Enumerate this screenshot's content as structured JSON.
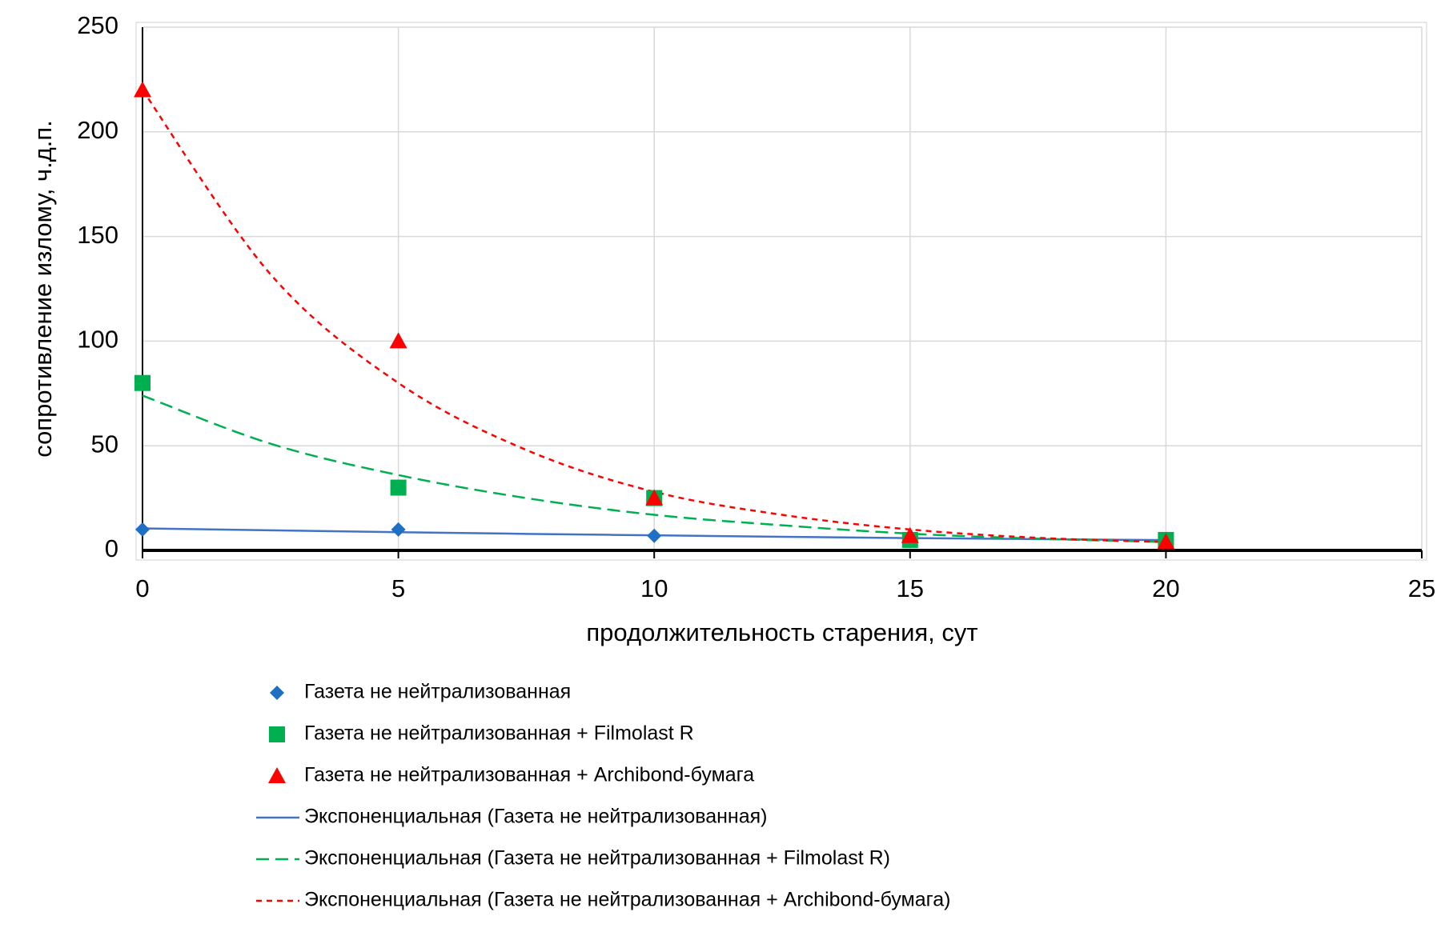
{
  "chart_data": {
    "type": "scatter",
    "x_label": "продолжительность старения, сут",
    "y_label": "сопротивление излому, ч.д.п.",
    "x": [
      0,
      5,
      10,
      15,
      20
    ],
    "xlim": [
      0,
      25
    ],
    "xticks": [
      0,
      5,
      10,
      15,
      20,
      25
    ],
    "ylim": [
      0,
      250
    ],
    "yticks": [
      0,
      50,
      100,
      150,
      200,
      250
    ],
    "grid": true,
    "series": [
      {
        "name": "Газета не нейтрализованная",
        "color": "#1f6fc5",
        "marker": "diamond",
        "values": [
          10,
          10,
          7,
          5,
          5
        ]
      },
      {
        "name": "Газета не нейтрализованная + Filmolast R",
        "color": "#00b050",
        "marker": "square",
        "values": [
          80,
          30,
          25,
          5,
          5
        ]
      },
      {
        "name": "Газета не нейтрализованная + Archibond-бумага",
        "color": "#ff0000",
        "marker": "triangle",
        "values": [
          220,
          100,
          25,
          7,
          4
        ]
      }
    ],
    "trendlines": [
      {
        "name": "Экспоненциальная (Газета не нейтрализованная)",
        "color": "#4472c4",
        "dash": "solid",
        "x": [
          0,
          2.5,
          5,
          7.5,
          10,
          12.5,
          15,
          17.5,
          20
        ],
        "values": [
          10.5,
          9.6,
          8.7,
          7.9,
          7.2,
          6.5,
          5.9,
          5.4,
          4.9
        ]
      },
      {
        "name": "Экспоненциальная (Газета не нейтрализованная + Filmolast R)",
        "color": "#00b050",
        "dash": "long",
        "x": [
          0,
          2.5,
          5,
          7.5,
          10,
          12.5,
          15,
          17.5,
          20
        ],
        "values": [
          74,
          51,
          36,
          25,
          17,
          12,
          8,
          5.6,
          4
        ]
      },
      {
        "name": "Экспоненциальная (Газета не нейтрализованная + Archibond-бумага)",
        "color": "#ff0000",
        "dash": "short",
        "x": [
          0,
          2.5,
          5,
          7.5,
          10,
          12.5,
          15,
          17.5,
          20
        ],
        "values": [
          220,
          132,
          80,
          48,
          28,
          17,
          10,
          6,
          4
        ]
      }
    ]
  }
}
